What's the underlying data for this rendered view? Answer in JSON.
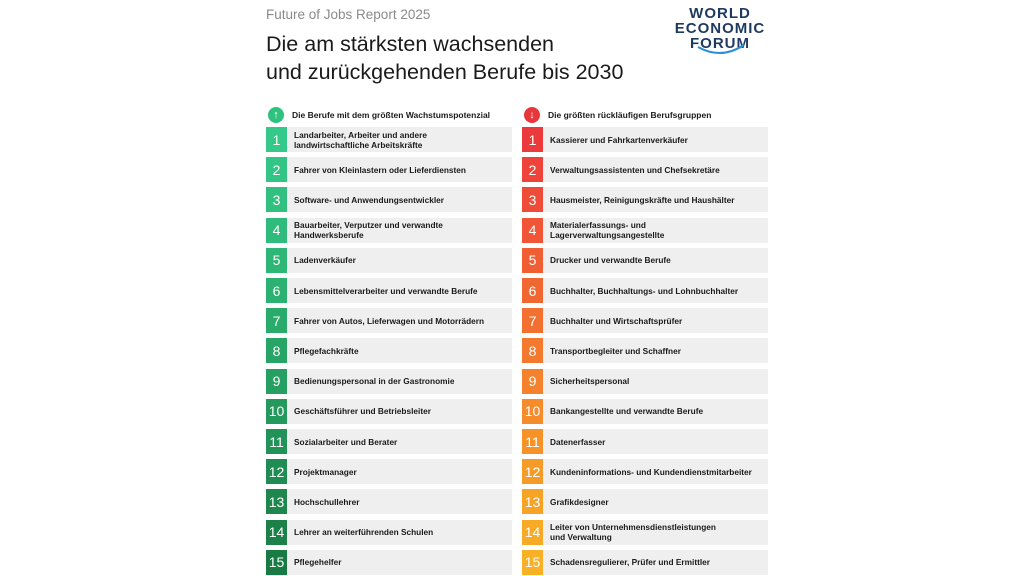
{
  "header": {
    "report_label": "Future of Jobs Report 2025",
    "title_line1": "Die am stärksten wachsenden",
    "title_line2": "und zurückgehenden Berufe bis 2030"
  },
  "logo": {
    "line1": "WORLD",
    "line2": "ECONOMIC",
    "line3": "FORUM"
  },
  "growing": {
    "heading": "Die Berufe mit dem größten Wachstumspotenzial",
    "icon": "arrow-up-icon",
    "accent": "#2ec27e",
    "items": [
      {
        "rank": "1",
        "label": "Landarbeiter, Arbeiter und andere\nlandwirtschaftliche Arbeitskräfte",
        "color": "#34c98a"
      },
      {
        "rank": "2",
        "label": "Fahrer von Kleinlastern oder Lieferdiensten",
        "color": "#33c585"
      },
      {
        "rank": "3",
        "label": "Software- und Anwendungsentwickler",
        "color": "#31c080"
      },
      {
        "rank": "4",
        "label": "Bauarbeiter, Verputzer und verwandte\nHandwerksberufe",
        "color": "#2fbb7b"
      },
      {
        "rank": "5",
        "label": "Ladenverkäufer",
        "color": "#2db676"
      },
      {
        "rank": "6",
        "label": "Lebensmittelverarbeiter und verwandte Berufe",
        "color": "#2bb171"
      },
      {
        "rank": "7",
        "label": "Fahrer von Autos, Lieferwagen und Motorrädern",
        "color": "#29ab6c"
      },
      {
        "rank": "8",
        "label": "Pflegefachkräfte",
        "color": "#27a567"
      },
      {
        "rank": "9",
        "label": "Bedienungspersonal in der Gastronomie",
        "color": "#259f62"
      },
      {
        "rank": "10",
        "label": "Geschäftsführer und Betriebsleiter",
        "color": "#23995d"
      },
      {
        "rank": "11",
        "label": "Sozialarbeiter und Berater",
        "color": "#219358"
      },
      {
        "rank": "12",
        "label": "Projektmanager",
        "color": "#1f8d53"
      },
      {
        "rank": "13",
        "label": "Hochschullehrer",
        "color": "#1d874e"
      },
      {
        "rank": "14",
        "label": "Lehrer an weiterführenden Schulen",
        "color": "#1b8149"
      },
      {
        "rank": "15",
        "label": "Pflegehelfer",
        "color": "#197b44"
      }
    ]
  },
  "declining": {
    "heading": "Die größten rückläufigen Berufsgruppen",
    "icon": "arrow-down-icon",
    "accent": "#e8373a",
    "items": [
      {
        "rank": "1",
        "label": "Kassierer und Fahrkartenverkäufer",
        "color": "#ec3a3c"
      },
      {
        "rank": "2",
        "label": "Verwaltungsassistenten und Chefsekretäre",
        "color": "#ed433a"
      },
      {
        "rank": "3",
        "label": "Hausmeister, Reinigungskräfte und Haushälter",
        "color": "#ee4c38"
      },
      {
        "rank": "4",
        "label": "Materialerfassungs- und\nLagerverwaltungsangestellte",
        "color": "#ef5536"
      },
      {
        "rank": "5",
        "label": "Drucker und verwandte Berufe",
        "color": "#f05e34"
      },
      {
        "rank": "6",
        "label": "Buchhalter, Buchhaltungs- und Lohnbuchhalter",
        "color": "#f16732"
      },
      {
        "rank": "7",
        "label": "Buchhalter und Wirtschaftsprüfer",
        "color": "#f27030"
      },
      {
        "rank": "8",
        "label": "Transportbegleiter und Schaffner",
        "color": "#f3792e"
      },
      {
        "rank": "9",
        "label": "Sicherheitspersonal",
        "color": "#f4822c"
      },
      {
        "rank": "10",
        "label": "Bankangestellte und verwandte Berufe",
        "color": "#f58b2a"
      },
      {
        "rank": "11",
        "label": "Datenerfasser",
        "color": "#f69328"
      },
      {
        "rank": "12",
        "label": "Kundeninformations- und Kundendienstmitarbeiter",
        "color": "#f69b27"
      },
      {
        "rank": "13",
        "label": "Grafikdesigner",
        "color": "#f7a326"
      },
      {
        "rank": "14",
        "label": "Leiter von Unternehmensdienstleistungen\nund Verwaltung",
        "color": "#f7aa26"
      },
      {
        "rank": "15",
        "label": "Schadensregulierer, Prüfer und Ermittler",
        "color": "#f8b126"
      }
    ]
  }
}
